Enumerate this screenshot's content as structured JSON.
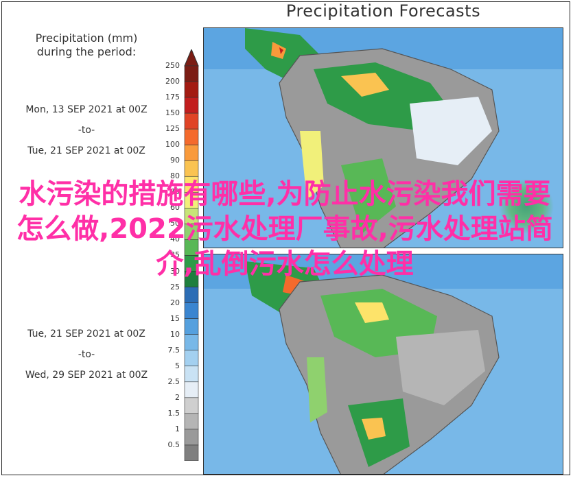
{
  "title": "Precipitation Forecasts",
  "legend": {
    "title_line1": "Precipitation (mm)",
    "title_line2": "during the period:",
    "units": "mm",
    "ticks": [
      "250",
      "200",
      "175",
      "150",
      "125",
      "100",
      "90",
      "80",
      "70",
      "60",
      "50",
      "40",
      "35",
      "30",
      "25",
      "20",
      "15",
      "10",
      "7.5",
      "5",
      "2.5",
      "2",
      "1.5",
      "1",
      "0.5"
    ],
    "colors": [
      "#7b1d14",
      "#a31b12",
      "#c21e1e",
      "#e04426",
      "#f46a2c",
      "#f99a3b",
      "#fac351",
      "#fde36a",
      "#f1f07a",
      "#c7e478",
      "#8fd16e",
      "#58b856",
      "#2e9b48",
      "#1f7f3e",
      "#2c6db5",
      "#3a85d0",
      "#55a0de",
      "#78b8e8",
      "#a3d0f0",
      "#c9e2f4",
      "#e6eef6",
      "#cfcfcf",
      "#b5b5b5",
      "#9a9a9a",
      "#7f7f7f"
    ]
  },
  "panels": [
    {
      "start": "Mon, 13 SEP 2021 at 00Z",
      "to": "-to-",
      "end": "Tue, 21 SEP 2021 at 00Z"
    },
    {
      "start": "Tue, 21 SEP 2021 at 00Z",
      "to": "-to-",
      "end": "Wed, 29 SEP 2021 at 00Z"
    }
  ],
  "overlay_text": "水污染的措施有哪些,为防止水污染我们需要怎么做,2022污水处理厂事故,污水处理站简介,乱倒污水怎么处理"
}
